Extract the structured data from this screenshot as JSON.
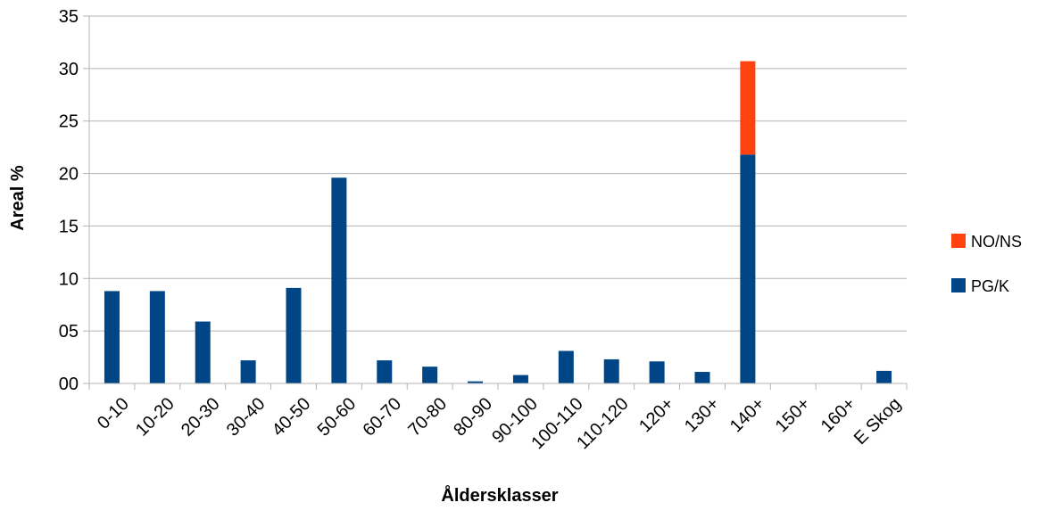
{
  "chart_data": {
    "type": "bar",
    "stacked": true,
    "title": "",
    "xlabel": "Åldersklasser",
    "ylabel": "Areal %",
    "ylim": [
      0,
      35
    ],
    "yticks": [
      0,
      5,
      10,
      15,
      20,
      25,
      30,
      35
    ],
    "ytick_labels": [
      "00",
      "05",
      "10",
      "15",
      "20",
      "25",
      "30",
      "35"
    ],
    "grid": true,
    "legend_position": "right",
    "categories": [
      "0-10",
      "10-20",
      "20-30",
      "30-40",
      "40-50",
      "50-60",
      "60-70",
      "70-80",
      "80-90",
      "90-100",
      "100-110",
      "110-120",
      "120+",
      "130+",
      "140+",
      "150+",
      "160+",
      "E Skog"
    ],
    "series": [
      {
        "name": "PG/K",
        "color": "#004586",
        "values": [
          8.8,
          8.8,
          5.9,
          2.2,
          9.1,
          19.6,
          2.2,
          1.6,
          0.2,
          0.8,
          3.1,
          2.3,
          2.1,
          1.1,
          21.8,
          0,
          0,
          1.2
        ]
      },
      {
        "name": "NO/NS",
        "color": "#ff420e",
        "values": [
          0,
          0,
          0,
          0,
          0,
          0,
          0,
          0,
          0,
          0,
          0,
          0,
          0,
          0,
          8.9,
          0,
          0,
          0
        ]
      }
    ],
    "legend_order": [
      "NO/NS",
      "PG/K"
    ]
  }
}
